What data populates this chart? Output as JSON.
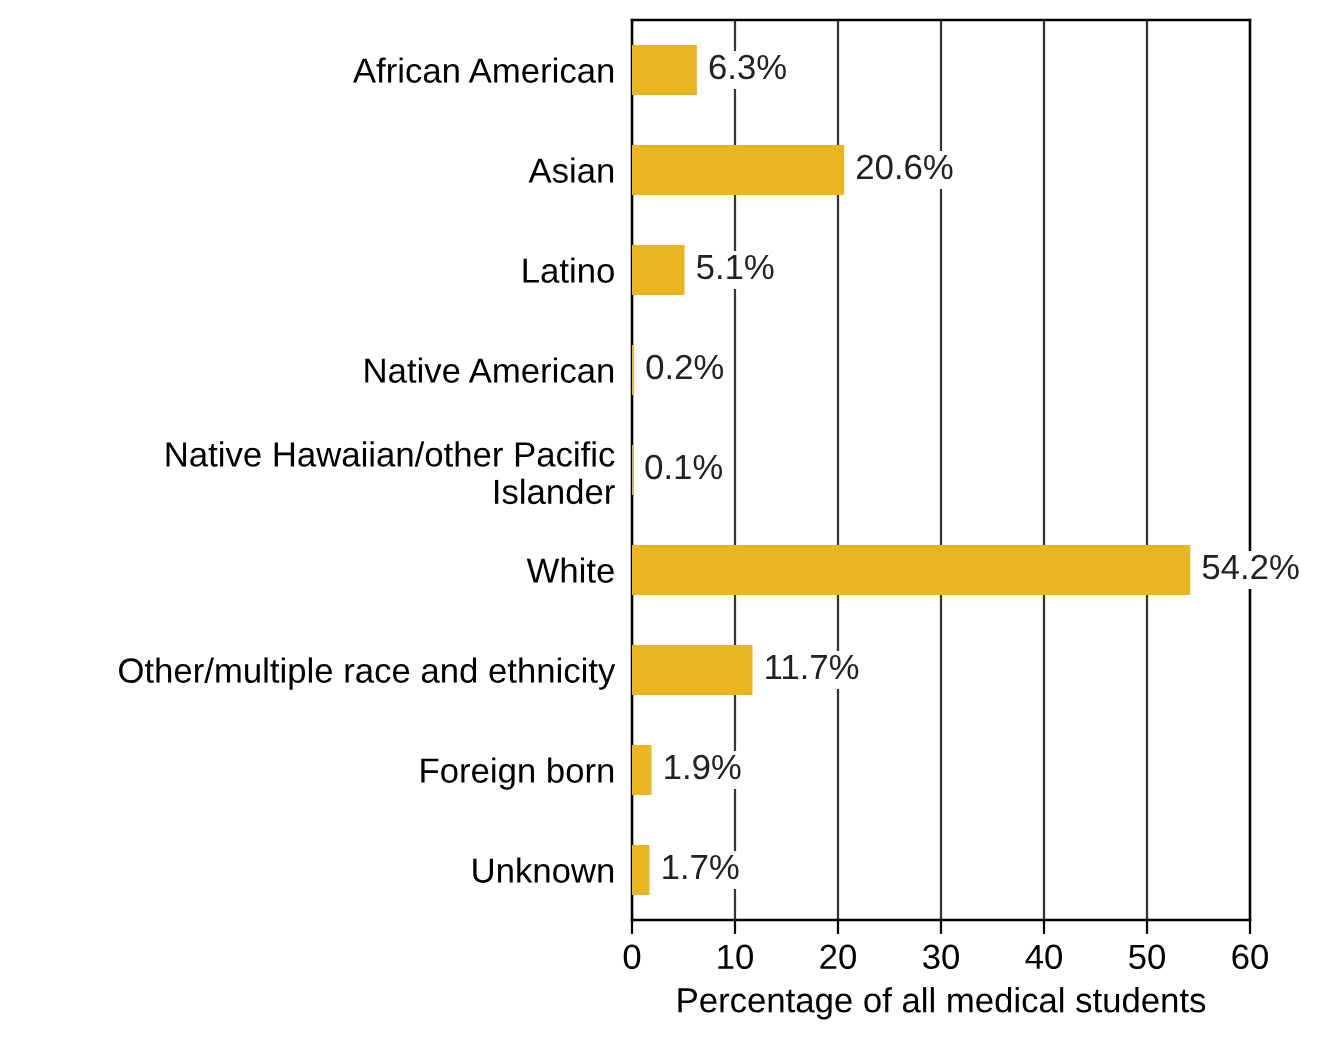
{
  "chart_data": {
    "type": "bar",
    "orientation": "horizontal",
    "xlabel": "Percentage of all medical students",
    "categories": [
      "African American",
      "Asian",
      "Latino",
      "Native American",
      "Native Hawaiian/other Pacific\nIslander",
      "White",
      "Other/multiple race and ethnicity",
      "Foreign born",
      "Unknown"
    ],
    "values": [
      6.3,
      20.6,
      5.1,
      0.2,
      0.1,
      54.2,
      11.7,
      1.9,
      1.7
    ],
    "value_labels": [
      "6.3%",
      "20.6%",
      "5.1%",
      "0.2%",
      "0.1%",
      "54.2%",
      "11.7%",
      "1.9%",
      "1.7%"
    ],
    "color": "#e9b521",
    "xlim": [
      0,
      60
    ],
    "xticks": [
      0,
      10,
      20,
      30,
      40,
      50,
      60
    ],
    "grid": "x"
  }
}
